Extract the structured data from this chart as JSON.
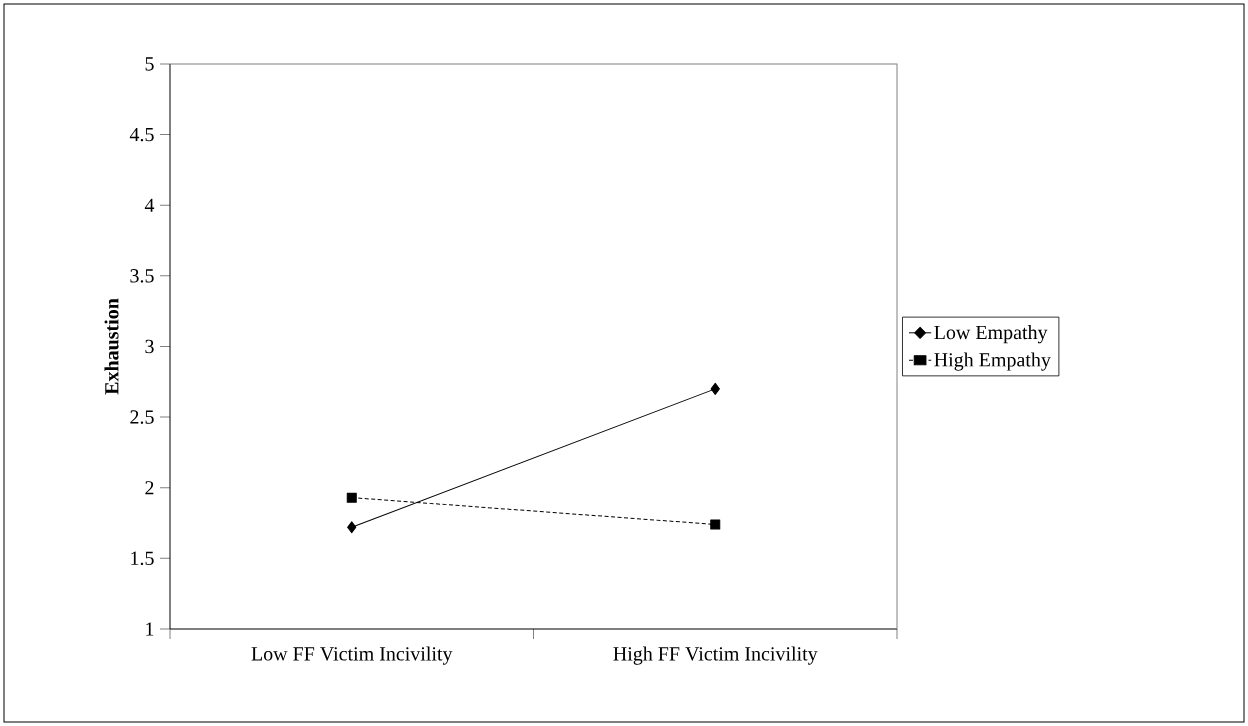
{
  "chart_data": {
    "type": "line",
    "ylabel": "Exhaustion",
    "categories": [
      "Low FF Victim Incivility",
      "High FF Victim Incivility"
    ],
    "series": [
      {
        "name": "Low Empathy",
        "color": "#000000",
        "marker": "diamond",
        "line_style": "solid",
        "values": [
          1.72,
          2.7
        ]
      },
      {
        "name": "High Empathy",
        "color": "#000000",
        "marker": "square",
        "line_style": "dashed",
        "values": [
          1.93,
          1.74
        ]
      }
    ],
    "ylim": [
      1,
      5
    ],
    "yticks": [
      1,
      1.5,
      2,
      2.5,
      3,
      3.5,
      4,
      4.5,
      5
    ],
    "grid": false,
    "legend": "right"
  }
}
